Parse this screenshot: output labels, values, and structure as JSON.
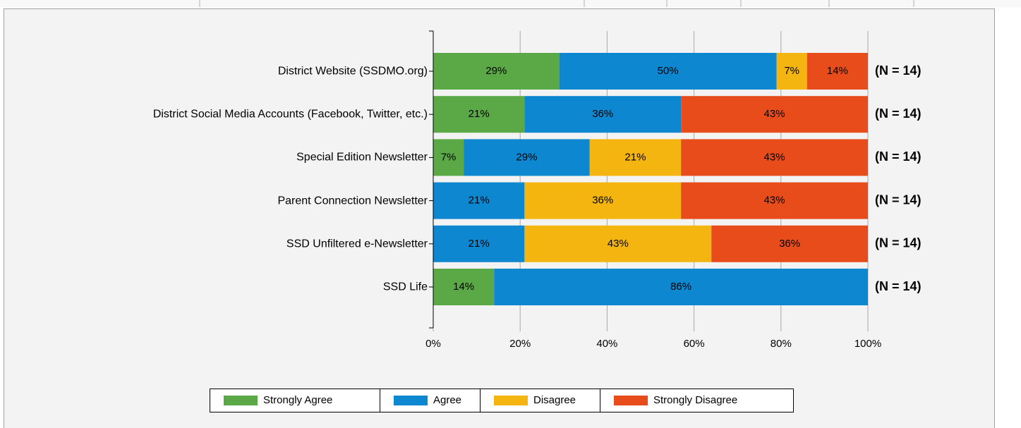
{
  "chart_data": {
    "type": "stacked_barh",
    "categories": [
      "District Website (SSDMO.org)",
      "District Social Media Accounts (Facebook, Twitter, etc.)",
      "Special Edition Newsletter",
      "Parent Connection Newsletter",
      "SSD Unfiltered e-Newsletter",
      "SSD Life"
    ],
    "series": [
      {
        "name": "Strongly Agree",
        "color": "#5aa846",
        "values": [
          29,
          21,
          7,
          0,
          0,
          14
        ],
        "value_labels": [
          "29%",
          "21%",
          "7%",
          null,
          null,
          "14%"
        ]
      },
      {
        "name": "Agree",
        "color": "#0d87d0",
        "values": [
          50,
          36,
          29,
          21,
          21,
          86
        ],
        "value_labels": [
          "50%",
          "36%",
          "29%",
          "21%",
          "21%",
          "86%"
        ]
      },
      {
        "name": "Disagree",
        "color": "#f5b510",
        "values": [
          7,
          0,
          21,
          36,
          43,
          0
        ],
        "value_labels": [
          "7%",
          null,
          "21%",
          "36%",
          "43%",
          null
        ]
      },
      {
        "name": "Strongly Disagree",
        "color": "#e84c1a",
        "values": [
          14,
          43,
          43,
          43,
          36,
          0
        ],
        "value_labels": [
          "14%",
          "43%",
          "43%",
          "43%",
          "36%",
          null
        ]
      }
    ],
    "annotations": [
      "(N = 14)",
      "(N = 14)",
      "(N = 14)",
      "(N = 14)",
      "(N = 14)",
      "(N = 14)"
    ],
    "xlim": [
      0,
      100
    ],
    "xticks": [
      {
        "value": 0,
        "label": "0%"
      },
      {
        "value": 20,
        "label": "20%"
      },
      {
        "value": 40,
        "label": "40%"
      },
      {
        "value": 60,
        "label": "60%"
      },
      {
        "value": 80,
        "label": "80%"
      },
      {
        "value": 100,
        "label": "100%"
      }
    ],
    "grid": true,
    "legend": "bottom"
  }
}
